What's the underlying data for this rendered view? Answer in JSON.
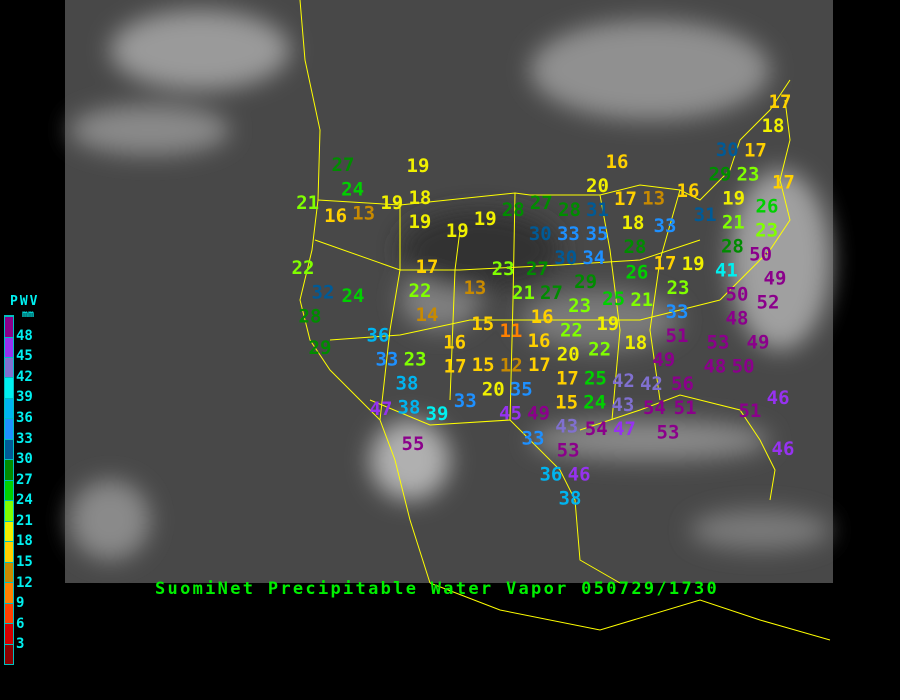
{
  "title": "SuomiNet Precipitable Water Vapor 050729/1730",
  "legend": {
    "title": "PWV",
    "unit": "mm",
    "ticks": [
      "3",
      "6",
      "9",
      "12",
      "15",
      "18",
      "21",
      "24",
      "27",
      "30",
      "33",
      "36",
      "39",
      "42",
      "45",
      "48"
    ],
    "colors": [
      "#8b0000",
      "#d40000",
      "#ff4000",
      "#ff8000",
      "#c88a00",
      "#ffd000",
      "#f0f000",
      "#80ff00",
      "#00d000",
      "#008c00",
      "#005a96",
      "#1e90ff",
      "#00b4f0",
      "#00f0f0",
      "#8070d0",
      "#9632f0",
      "#8b008b"
    ]
  },
  "colors": {
    "map_background": "#4a4a4a",
    "boundaries": "#ffff00",
    "title": "#00f000",
    "legend_text": "#00f0f0"
  },
  "stations": [
    19,
    27,
    24,
    21,
    13,
    16,
    19,
    18,
    19,
    19,
    19,
    28,
    27,
    28,
    20,
    30,
    33,
    31,
    35,
    34,
    27,
    30,
    23,
    22,
    32,
    24,
    17,
    22,
    13,
    14,
    21,
    27,
    29,
    28,
    29,
    36,
    33,
    23,
    38,
    38,
    39,
    47,
    55,
    16,
    17,
    15,
    12,
    20,
    35,
    33,
    45,
    49,
    15,
    11,
    16,
    16,
    20,
    23,
    22,
    19,
    17,
    17,
    22,
    15,
    25,
    43,
    24,
    42,
    43,
    47,
    53,
    54,
    33,
    36,
    46,
    38,
    33,
    53,
    49,
    18,
    51,
    49,
    48,
    50,
    56,
    42,
    54,
    51,
    53,
    46,
    51,
    46,
    17,
    18,
    30,
    29,
    23,
    17,
    17,
    19,
    31,
    16,
    13,
    17,
    16,
    18,
    33,
    28,
    19,
    26,
    17,
    25,
    23,
    21,
    26,
    23,
    21,
    28,
    50,
    41,
    50,
    48,
    49,
    52
  ]
}
